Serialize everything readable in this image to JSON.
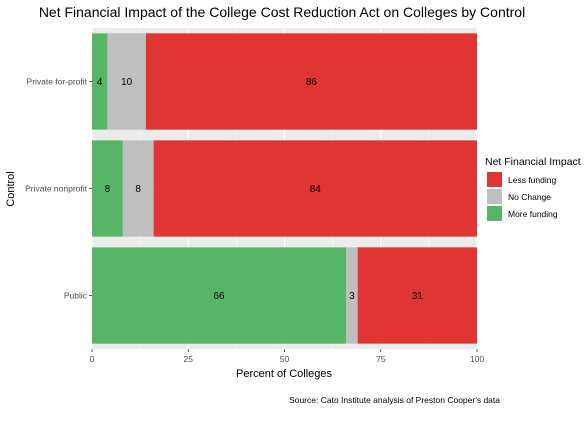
{
  "chart_data": {
    "type": "bar",
    "orientation": "horizontal",
    "stacked": true,
    "title": "Net Financial Impact of the College Cost Reduction Act on Colleges by Control",
    "xlabel": "Percent of Colleges",
    "ylabel": "Control",
    "xlim": [
      0,
      100
    ],
    "xticks": [
      0,
      25,
      50,
      75,
      100
    ],
    "grid": true,
    "legend_position": "right",
    "legend_title": "Net Financial Impact",
    "caption": "Source: Cato Institute analysis of Preston Cooper's data",
    "categories": [
      "Private for-profit",
      "Private nonprofit",
      "Public"
    ],
    "series": [
      {
        "name": "More funding",
        "color": "#56B566",
        "values": [
          4,
          8,
          66
        ]
      },
      {
        "name": "No Change",
        "color": "#BFBFBF",
        "values": [
          10,
          8,
          3
        ]
      },
      {
        "name": "Less funding",
        "color": "#E03532",
        "values": [
          86,
          84,
          31
        ]
      }
    ],
    "legend_order": [
      "Less funding",
      "No Change",
      "More funding"
    ]
  }
}
